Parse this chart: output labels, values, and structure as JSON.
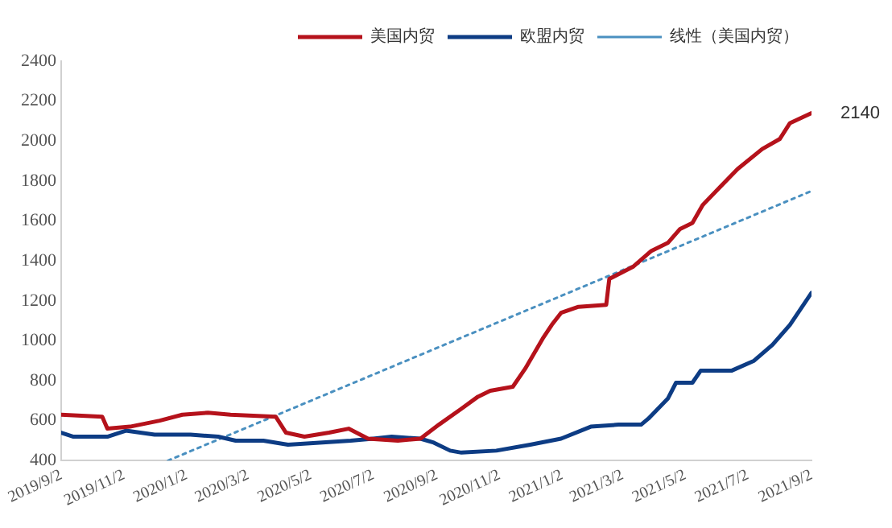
{
  "chart_data": {
    "type": "line",
    "legend": "top right",
    "grid": false,
    "marker": "none",
    "xlim": [
      "2019-09-02",
      "2021-09-02"
    ],
    "xticks": [
      {
        "value": "2019-09-02",
        "label": "2019/9/2"
      },
      {
        "value": "2019-11-02",
        "label": "2019/11/2"
      },
      {
        "value": "2020-01-02",
        "label": "2020/1/2"
      },
      {
        "value": "2020-03-02",
        "label": "2020/3/2"
      },
      {
        "value": "2020-05-02",
        "label": "2020/5/2"
      },
      {
        "value": "2020-07-02",
        "label": "2020/7/2"
      },
      {
        "value": "2020-09-02",
        "label": "2020/9/2"
      },
      {
        "value": "2020-11-02",
        "label": "2020/11/2"
      },
      {
        "value": "2021-01-02",
        "label": "2021/1/2"
      },
      {
        "value": "2021-03-02",
        "label": "2021/3/2"
      },
      {
        "value": "2021-05-02",
        "label": "2021/5/2"
      },
      {
        "value": "2021-07-02",
        "label": "2021/7/2"
      },
      {
        "value": "2021-09-02",
        "label": "2021/9/2"
      }
    ],
    "ylim": [
      400,
      2400
    ],
    "yticks": [
      400,
      600,
      800,
      1000,
      1200,
      1400,
      1600,
      1800,
      2000,
      2200,
      2400
    ],
    "annotations": [
      {
        "text": "2140",
        "x": "2021-09-02",
        "y": 2140
      }
    ],
    "series": [
      {
        "name": "美国内贸",
        "color": "#b5121b",
        "line_style": "solid",
        "x": [
          "2019-09-02",
          "2019-10-12",
          "2019-10-17",
          "2019-11-08",
          "2019-12-07",
          "2019-12-29",
          "2020-01-23",
          "2020-02-14",
          "2020-03-29",
          "2020-04-08",
          "2020-04-26",
          "2020-05-20",
          "2020-06-08",
          "2020-06-27",
          "2020-07-26",
          "2020-08-17",
          "2020-09-04",
          "2020-09-26",
          "2020-10-12",
          "2020-10-24",
          "2020-11-15",
          "2020-11-27",
          "2020-12-14",
          "2020-12-23",
          "2021-01-01",
          "2021-01-18",
          "2021-02-14",
          "2021-02-17",
          "2021-03-12",
          "2021-03-30",
          "2021-04-15",
          "2021-04-27",
          "2021-05-09",
          "2021-05-19",
          "2021-06-05",
          "2021-06-22",
          "2021-07-16",
          "2021-08-02",
          "2021-08-12",
          "2021-09-02"
        ],
        "values": [
          630,
          620,
          560,
          570,
          600,
          630,
          640,
          630,
          620,
          540,
          520,
          540,
          560,
          510,
          500,
          510,
          580,
          660,
          720,
          750,
          770,
          860,
          1010,
          1080,
          1140,
          1170,
          1180,
          1310,
          1370,
          1450,
          1490,
          1560,
          1590,
          1680,
          1770,
          1860,
          1960,
          2010,
          2090,
          2140
        ]
      },
      {
        "name": "欧盟内贸",
        "color": "#0d3c84",
        "line_style": "solid",
        "x": [
          "2019-09-02",
          "2019-09-14",
          "2019-10-17",
          "2019-11-04",
          "2019-12-02",
          "2020-01-06",
          "2020-02-02",
          "2020-02-19",
          "2020-03-17",
          "2020-04-10",
          "2020-06-10",
          "2020-07-02",
          "2020-07-20",
          "2020-08-17",
          "2020-08-30",
          "2020-09-15",
          "2020-09-26",
          "2020-10-30",
          "2020-12-02",
          "2021-01-01",
          "2021-01-30",
          "2021-02-26",
          "2021-03-20",
          "2021-03-27",
          "2021-04-15",
          "2021-04-23",
          "2021-05-09",
          "2021-05-17",
          "2021-06-16",
          "2021-07-08",
          "2021-07-26",
          "2021-08-12",
          "2021-09-02"
        ],
        "values": [
          540,
          520,
          520,
          550,
          530,
          530,
          520,
          500,
          500,
          480,
          500,
          510,
          520,
          510,
          490,
          450,
          440,
          450,
          480,
          510,
          570,
          580,
          580,
          610,
          710,
          790,
          790,
          850,
          850,
          900,
          980,
          1080,
          1240
        ]
      },
      {
        "name": "线性（美国内贸）",
        "color": "#4a90c0",
        "line_style": "dotted",
        "x": [
          "2019-12-15",
          "2021-09-02"
        ],
        "values": [
          400,
          1750
        ]
      }
    ]
  }
}
